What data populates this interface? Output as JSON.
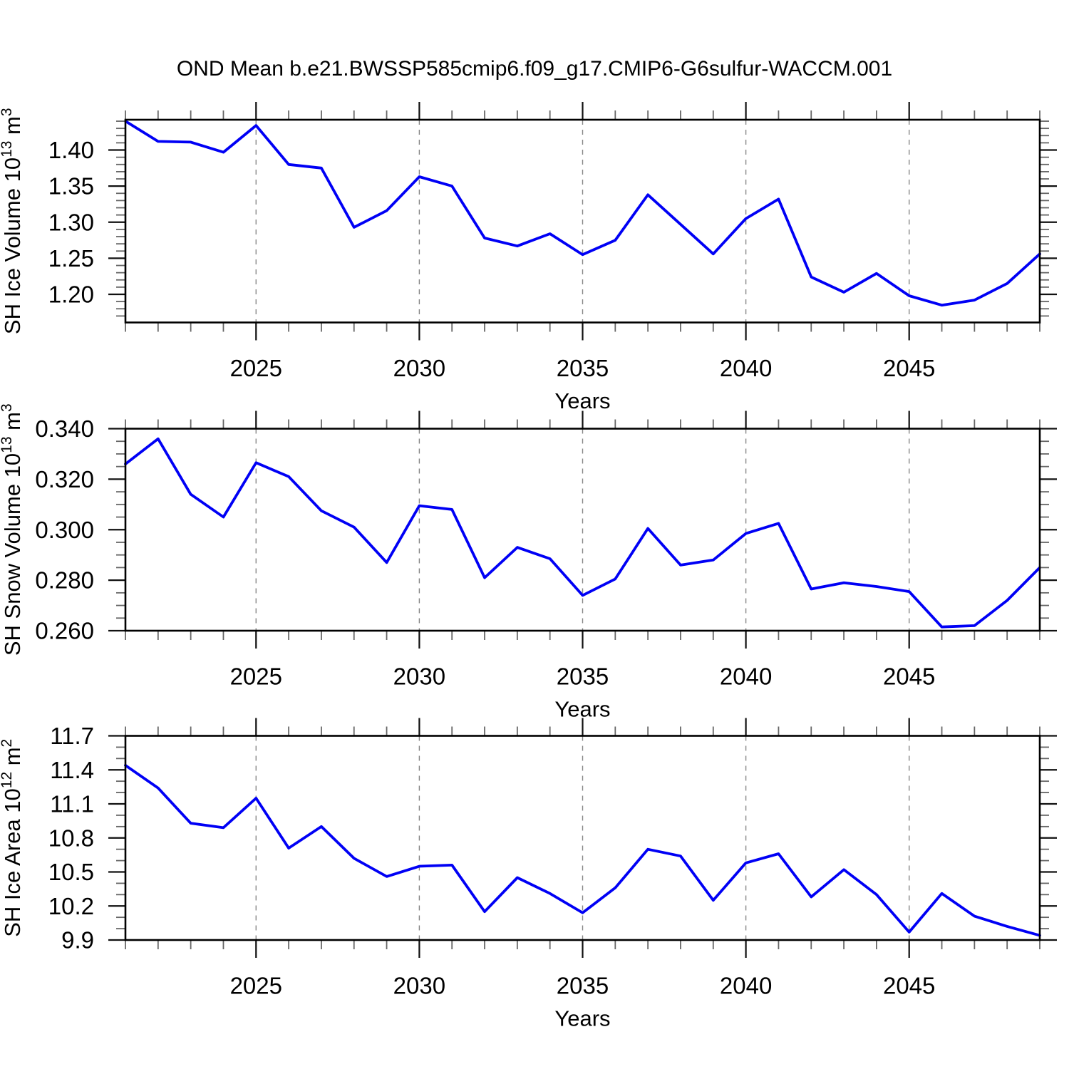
{
  "title": "OND Mean b.e21.BWSSP585cmip6.f09_g17.CMIP6-G6sulfur-WACCM.001",
  "figure": {
    "line_color": "#0000f5",
    "grid_color": "#888888",
    "axis_color": "#000000",
    "major_tick_color": "#111111",
    "minor_tick_color": "#666666",
    "text_color": "#000000"
  },
  "chart_data": [
    {
      "name": "sh-ice-volume",
      "type": "line",
      "xlabel": "Years",
      "ylabel_parts": [
        {
          "t": "SH Ice Volume 10"
        },
        {
          "t": "13",
          "sup": true
        },
        {
          "t": " m"
        },
        {
          "t": "3",
          "sup": true
        }
      ],
      "x": [
        2021,
        2022,
        2023,
        2024,
        2025,
        2026,
        2027,
        2028,
        2029,
        2030,
        2031,
        2032,
        2033,
        2034,
        2035,
        2036,
        2037,
        2038,
        2039,
        2040,
        2041,
        2042,
        2043,
        2044,
        2045,
        2046,
        2047,
        2048,
        2049
      ],
      "values": [
        1.44,
        1.412,
        1.411,
        1.397,
        1.434,
        1.38,
        1.375,
        1.293,
        1.316,
        1.363,
        1.35,
        1.278,
        1.267,
        1.284,
        1.255,
        1.275,
        1.338,
        1.297,
        1.256,
        1.305,
        1.332,
        1.224,
        1.203,
        1.229,
        1.198,
        1.185,
        1.192,
        1.215,
        1.256
      ],
      "xlim": [
        2021,
        2049
      ],
      "ylim": [
        1.161,
        1.442
      ],
      "xticks": [
        {
          "v": 2025,
          "label": "2025"
        },
        {
          "v": 2030,
          "label": "2030"
        },
        {
          "v": 2035,
          "label": "2035"
        },
        {
          "v": 2040,
          "label": "2040"
        },
        {
          "v": 2045,
          "label": "2045"
        }
      ],
      "x_minor_step": 1,
      "yticks": [
        {
          "v": 1.4,
          "label": "1.40"
        },
        {
          "v": 1.35,
          "label": "1.35"
        },
        {
          "v": 1.3,
          "label": "1.30"
        },
        {
          "v": 1.25,
          "label": "1.25"
        },
        {
          "v": 1.2,
          "label": "1.20"
        }
      ],
      "y_minor_step": 0.01,
      "grid": "vertical-dashed"
    },
    {
      "name": "sh-snow-volume",
      "type": "line",
      "xlabel": "Years",
      "ylabel_parts": [
        {
          "t": "SH Snow Volume 10"
        },
        {
          "t": "13",
          "sup": true
        },
        {
          "t": " m"
        },
        {
          "t": "3",
          "sup": true
        }
      ],
      "x": [
        2021,
        2022,
        2023,
        2024,
        2025,
        2026,
        2027,
        2028,
        2029,
        2030,
        2031,
        2032,
        2033,
        2034,
        2035,
        2036,
        2037,
        2038,
        2039,
        2040,
        2041,
        2042,
        2043,
        2044,
        2045,
        2046,
        2047,
        2048,
        2049
      ],
      "values": [
        0.326,
        0.336,
        0.314,
        0.305,
        0.3265,
        0.321,
        0.3075,
        0.301,
        0.287,
        0.3095,
        0.308,
        0.281,
        0.293,
        0.2885,
        0.274,
        0.2805,
        0.3005,
        0.286,
        0.288,
        0.2985,
        0.3025,
        0.2765,
        0.279,
        0.2775,
        0.2755,
        0.2615,
        0.262,
        0.272,
        0.285
      ],
      "xlim": [
        2021,
        2049
      ],
      "ylim": [
        0.26,
        0.34
      ],
      "xticks": [
        {
          "v": 2025,
          "label": "2025"
        },
        {
          "v": 2030,
          "label": "2030"
        },
        {
          "v": 2035,
          "label": "2035"
        },
        {
          "v": 2040,
          "label": "2040"
        },
        {
          "v": 2045,
          "label": "2045"
        }
      ],
      "x_minor_step": 1,
      "yticks": [
        {
          "v": 0.34,
          "label": "0.340"
        },
        {
          "v": 0.32,
          "label": "0.320"
        },
        {
          "v": 0.3,
          "label": "0.300"
        },
        {
          "v": 0.28,
          "label": "0.280"
        },
        {
          "v": 0.26,
          "label": "0.260"
        }
      ],
      "y_minor_step": 0.005,
      "grid": "vertical-dashed"
    },
    {
      "name": "sh-ice-area",
      "type": "line",
      "xlabel": "Years",
      "ylabel_parts": [
        {
          "t": "SH Ice Area 10"
        },
        {
          "t": "12",
          "sup": true
        },
        {
          "t": " m"
        },
        {
          "t": "2",
          "sup": true
        }
      ],
      "x": [
        2021,
        2022,
        2023,
        2024,
        2025,
        2026,
        2027,
        2028,
        2029,
        2030,
        2031,
        2032,
        2033,
        2034,
        2035,
        2036,
        2037,
        2038,
        2039,
        2040,
        2041,
        2042,
        2043,
        2044,
        2045,
        2046,
        2047,
        2048,
        2049
      ],
      "values": [
        11.44,
        11.24,
        10.93,
        10.89,
        11.15,
        10.71,
        10.9,
        10.62,
        10.46,
        10.55,
        10.56,
        10.15,
        10.45,
        10.31,
        10.14,
        10.36,
        10.7,
        10.64,
        10.25,
        10.58,
        10.66,
        10.28,
        10.52,
        10.3,
        9.97,
        10.31,
        10.11,
        10.02,
        9.94
      ],
      "xlim": [
        2021,
        2049
      ],
      "ylim": [
        9.9,
        11.7
      ],
      "xticks": [
        {
          "v": 2025,
          "label": "2025"
        },
        {
          "v": 2030,
          "label": "2030"
        },
        {
          "v": 2035,
          "label": "2035"
        },
        {
          "v": 2040,
          "label": "2040"
        },
        {
          "v": 2045,
          "label": "2045"
        }
      ],
      "x_minor_step": 1,
      "yticks": [
        {
          "v": 11.7,
          "label": "11.7"
        },
        {
          "v": 11.4,
          "label": "11.4"
        },
        {
          "v": 11.1,
          "label": "11.1"
        },
        {
          "v": 10.8,
          "label": "10.8"
        },
        {
          "v": 10.5,
          "label": "10.5"
        },
        {
          "v": 10.2,
          "label": "10.2"
        },
        {
          "v": 9.9,
          "label": "9.9"
        }
      ],
      "y_minor_step": 0.1,
      "grid": "vertical-dashed"
    }
  ]
}
